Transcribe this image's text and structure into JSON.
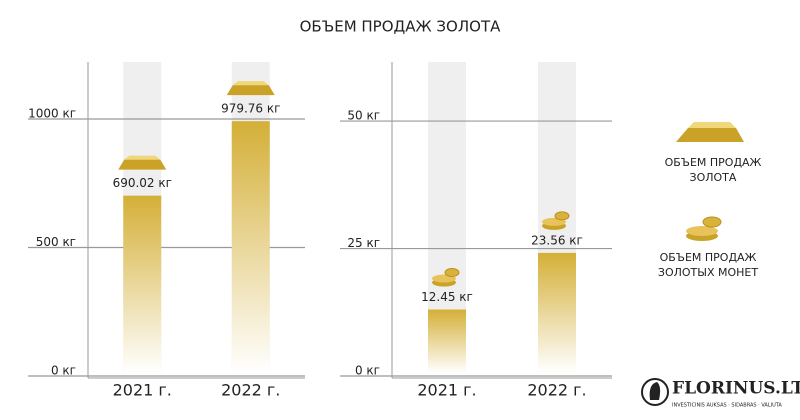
{
  "title": "ОБЪЕМ ПРОДАЖ ЗОЛОТА",
  "chart_data": [
    {
      "type": "bar",
      "categories": [
        "2021 г.",
        "2022 г."
      ],
      "series": [
        {
          "name": "ОБЪЕМ ПРОДАЖ ЗОЛОТА",
          "color": "#d4af37",
          "values": [
            690.02,
            979.76
          ],
          "value_labels": [
            "690.02 кг",
            "979.76 кг"
          ]
        }
      ],
      "ylim": [
        0,
        1210
      ],
      "yticks": [
        {
          "value": 0,
          "label": "0 кг"
        },
        {
          "value": 500,
          "label": "500 кг"
        },
        {
          "value": 1000,
          "label": "1000 кг"
        }
      ],
      "grid": true
    },
    {
      "type": "bar",
      "categories": [
        "2021 г.",
        "2022 г."
      ],
      "series": [
        {
          "name": "ОБЪЕМ ПРОДАЖ ЗОЛОТЫХ МОНЕТ",
          "color": "#d4af37",
          "values": [
            12.45,
            23.56
          ],
          "value_labels": [
            "12.45 кг",
            "23.56 кг"
          ]
        }
      ],
      "ylim": [
        0,
        61
      ],
      "yticks": [
        {
          "value": 0,
          "label": "0 кг"
        },
        {
          "value": 25,
          "label": "25 кг"
        },
        {
          "value": 50,
          "label": "50 кг"
        }
      ],
      "grid": true
    }
  ],
  "logo": {
    "name": "FLORINUS.LT",
    "tagline": "INVESTICINIS AUKSAS · SIDABRAS · VALIUTA"
  }
}
